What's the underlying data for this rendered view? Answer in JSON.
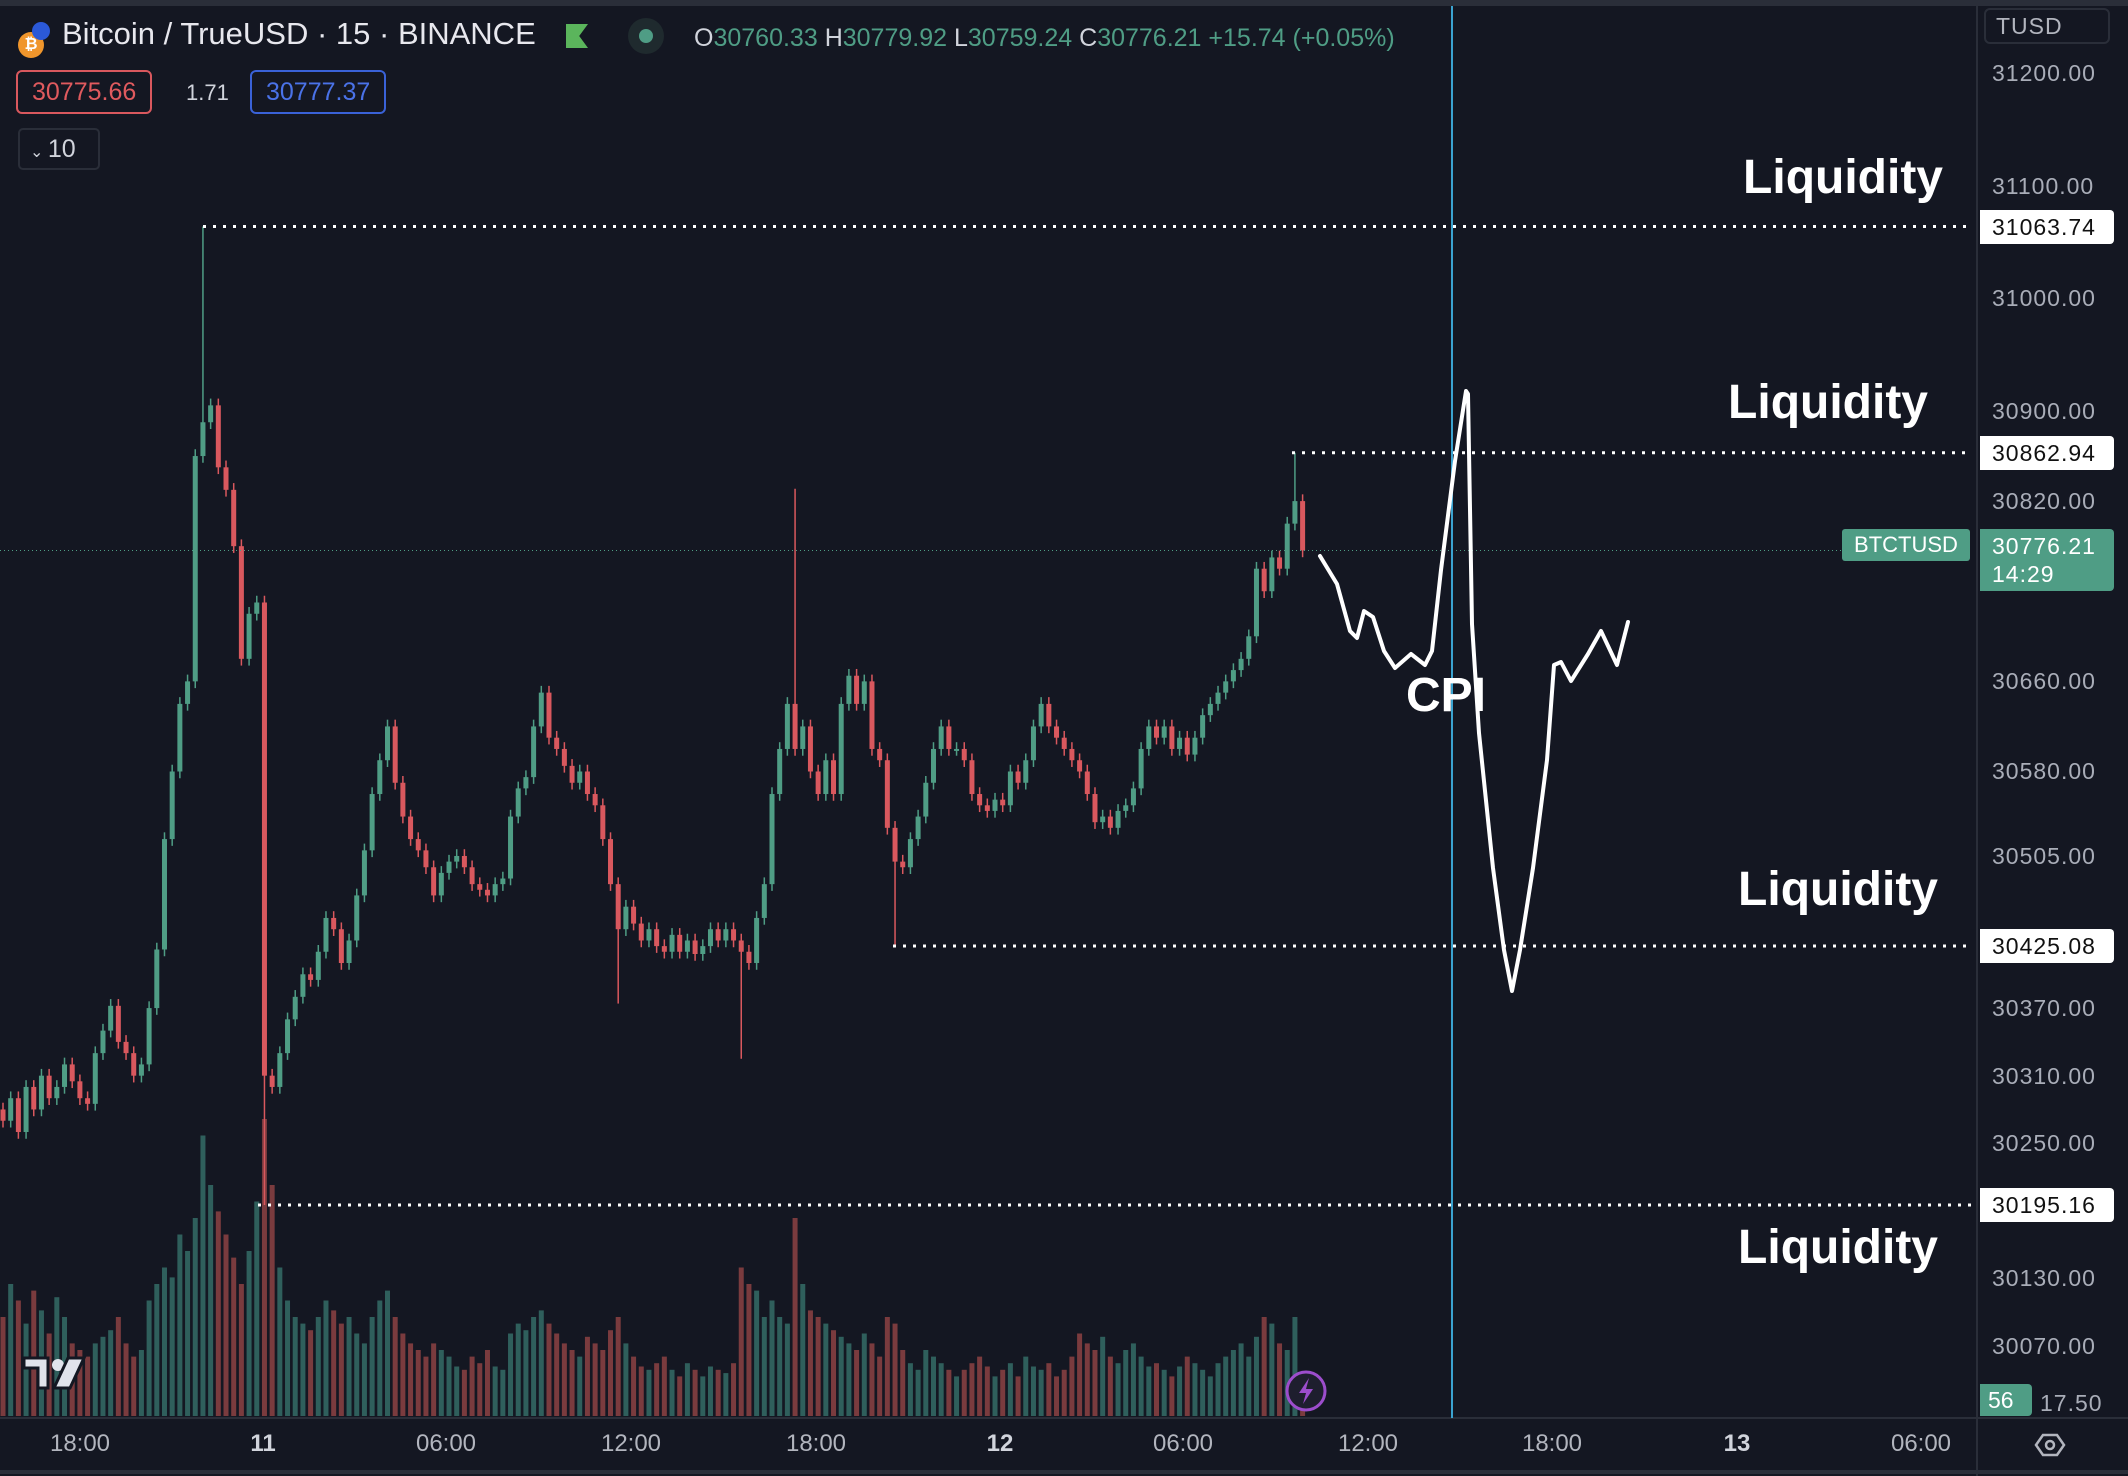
{
  "header": {
    "symbol": "Bitcoin / TrueUSD · 15 · BINANCE",
    "ohlc": {
      "o_label": "O",
      "o": "30760.33",
      "h_label": "H",
      "h": "30779.92",
      "l_label": "L",
      "l": "30759.24",
      "c_label": "C",
      "c": "30776.21",
      "change": "+15.74 (+0.05%)"
    },
    "bid": "30775.66",
    "spread": "1.71",
    "ask": "30777.37",
    "indicator_toggle": "10",
    "currency": "TUSD"
  },
  "colors": {
    "background": "#141722",
    "up": "#4f9d85",
    "down": "#d9585e",
    "vol_up": "#2f5f5c",
    "vol_down": "#7a3b3e",
    "event_line": "#3ba3d0",
    "accent_blue": "#3a62d8"
  },
  "annotations": {
    "liquidity_labels": [
      "Liquidity",
      "Liquidity",
      "Liquidity",
      "Liquidity"
    ],
    "event_label": "CPI"
  },
  "footer": {
    "volume_badge": "56",
    "settings_icon": "eye-settings-icon",
    "lightning_icon": "lightning-icon"
  },
  "chart_data": {
    "type": "candlestick",
    "interval": "15",
    "yaxis_ticks": [
      "31200.00",
      "31100.00",
      "31000.00",
      "30900.00",
      "30820.00",
      "30660.00",
      "30580.00",
      "30505.00",
      "30370.00",
      "30310.00",
      "30250.00",
      "30130.00",
      "30070.00"
    ],
    "yaxis_partial_tick": "17.50",
    "xaxis_ticks": [
      {
        "label": "18:00",
        "bold": false
      },
      {
        "label": "11",
        "bold": true
      },
      {
        "label": "06:00",
        "bold": false
      },
      {
        "label": "12:00",
        "bold": false
      },
      {
        "label": "18:00",
        "bold": false
      },
      {
        "label": "12",
        "bold": true
      },
      {
        "label": "06:00",
        "bold": false
      },
      {
        "label": "12:00",
        "bold": false
      },
      {
        "label": "18:00",
        "bold": false
      },
      {
        "label": "13",
        "bold": true
      },
      {
        "label": "06:00",
        "bold": false
      }
    ],
    "levels": [
      {
        "price": "31063.74"
      },
      {
        "price": "30862.94"
      },
      {
        "price": "30425.08"
      },
      {
        "price": "30195.16"
      }
    ],
    "last_price": {
      "symbol": "BTCTUSD",
      "price": "30776.21",
      "countdown": "14:29"
    },
    "first_open": 30280,
    "close": [
      30270,
      30290,
      30260,
      30300,
      30280,
      30310,
      30290,
      30300,
      30320,
      30305,
      30290,
      30285,
      30330,
      30350,
      30372,
      30340,
      30330,
      30310,
      30320,
      30370,
      30422,
      30520,
      30580,
      30640,
      30660,
      30860,
      30890,
      30905,
      30850,
      30830,
      30780,
      30680,
      30720,
      30730,
      30310,
      30300,
      30330,
      30360,
      30380,
      30400,
      30395,
      30420,
      30450,
      30440,
      30410,
      30430,
      30470,
      30510,
      30560,
      30590,
      30620,
      30570,
      30540,
      30520,
      30510,
      30495,
      30470,
      30490,
      30500,
      30505,
      30495,
      30480,
      30475,
      30470,
      30480,
      30485,
      30540,
      30565,
      30575,
      30620,
      30650,
      30610,
      30600,
      30585,
      30570,
      30580,
      30560,
      30550,
      30520,
      30480,
      30440,
      30460,
      30445,
      30430,
      30440,
      30425,
      30420,
      30435,
      30420,
      30430,
      30418,
      30425,
      30440,
      30430,
      30440,
      30430,
      30420,
      30410,
      30450,
      30480,
      30560,
      30600,
      30640,
      30600,
      30620,
      30580,
      30560,
      30590,
      30560,
      30640,
      30665,
      30640,
      30660,
      30600,
      30590,
      30530,
      30500,
      30495,
      30520,
      30540,
      30570,
      30600,
      30620,
      30600,
      30600,
      30590,
      30560,
      30550,
      30545,
      30555,
      30550,
      30580,
      30570,
      30590,
      30620,
      30640,
      30620,
      30610,
      30600,
      30590,
      30580,
      30560,
      30535,
      30540,
      30530,
      30545,
      30550,
      30565,
      30600,
      30620,
      30610,
      30620,
      30600,
      30610,
      30595,
      30610,
      30630,
      30640,
      30650,
      30660,
      30670,
      30680,
      30700,
      30760,
      30740,
      30770,
      30760,
      30800,
      30820,
      30776.21
    ],
    "wick_extremes": [
      {
        "index": 26,
        "high": 31063.74
      },
      {
        "index": 34,
        "low": 30195.16
      },
      {
        "index": 80,
        "low": 30374
      },
      {
        "index": 96,
        "low": 30325
      },
      {
        "index": 103,
        "high": 30831
      },
      {
        "index": 116,
        "low": 30425.08
      },
      {
        "index": 168,
        "high": 30862.94
      }
    ],
    "volume": [
      30,
      40,
      35,
      28,
      38,
      32,
      25,
      36,
      30,
      22,
      20,
      18,
      22,
      24,
      26,
      30,
      22,
      18,
      20,
      35,
      40,
      45,
      42,
      55,
      50,
      60,
      85,
      70,
      62,
      55,
      48,
      40,
      50,
      65,
      90,
      70,
      45,
      35,
      30,
      28,
      26,
      30,
      35,
      32,
      28,
      30,
      25,
      22,
      30,
      35,
      38,
      30,
      25,
      22,
      20,
      18,
      22,
      20,
      18,
      15,
      14,
      18,
      16,
      20,
      15,
      14,
      25,
      28,
      26,
      30,
      32,
      28,
      25,
      22,
      20,
      18,
      24,
      22,
      20,
      26,
      30,
      22,
      18,
      15,
      14,
      16,
      18,
      14,
      12,
      16,
      14,
      12,
      15,
      14,
      13,
      16,
      45,
      40,
      38,
      30,
      35,
      30,
      28,
      60,
      40,
      32,
      30,
      28,
      26,
      24,
      22,
      20,
      25,
      22,
      18,
      30,
      28,
      20,
      16,
      14,
      20,
      18,
      16,
      14,
      12,
      14,
      16,
      18,
      15,
      12,
      14,
      16,
      12,
      18,
      15,
      14,
      16,
      12,
      14,
      18,
      25,
      22,
      20,
      24,
      18,
      16,
      20,
      22,
      18,
      15,
      16,
      14,
      12,
      15,
      18,
      16,
      14,
      12,
      16,
      18,
      20,
      22,
      18,
      24,
      30,
      28,
      22,
      20,
      30,
      12
    ]
  }
}
